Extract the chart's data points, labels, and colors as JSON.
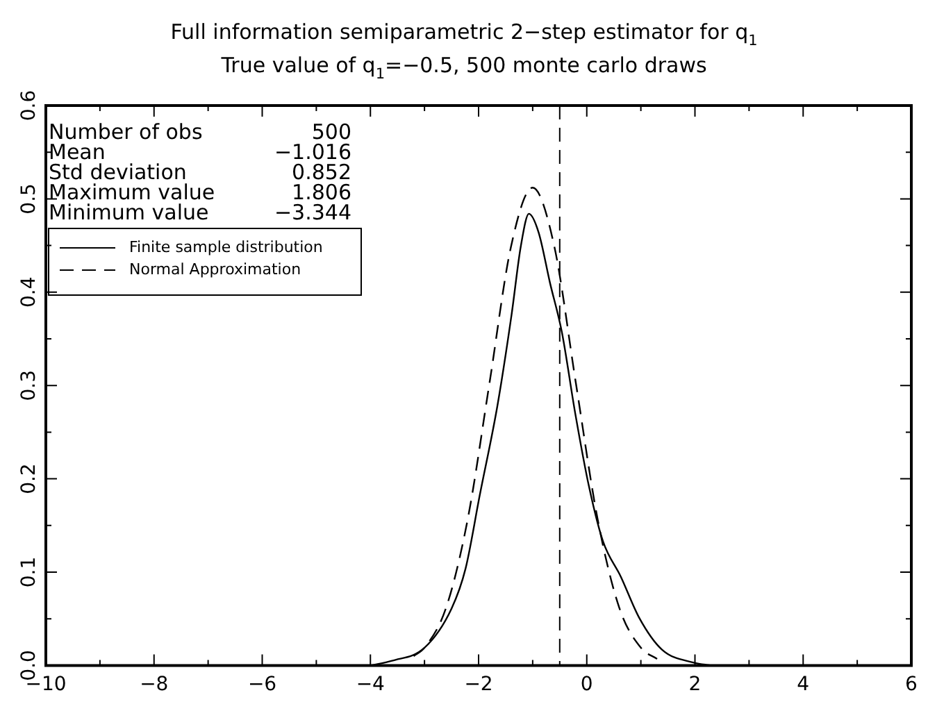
{
  "chart_data": {
    "type": "line",
    "title": "Full information semiparametric 2−step estimator for q$_{1}$",
    "subtitle": "True value of q$_{1}$=−0.5, 500 monte carlo draws",
    "xlim": [
      -10,
      6
    ],
    "xticks": [
      -10,
      -8,
      -6,
      -4,
      -2,
      0,
      2,
      4,
      6
    ],
    "ylim": [
      0,
      0.6
    ],
    "yticks": [
      {
        "value": 0,
        "label": "0.0"
      },
      0.1,
      0.2,
      0.3,
      0.4,
      0.5,
      0.6
    ],
    "grid": false,
    "legend": "top left",
    "marker": "none",
    "series": [
      {
        "name": "Finite sample distribution",
        "color": "#000000",
        "line_style": "solid",
        "x": [
          -4,
          -3.6,
          -3,
          -2.5,
          -2.24,
          -1.98,
          -1.65,
          -1.39,
          -1.22,
          -1.07,
          -0.89,
          -0.68,
          -0.46,
          -0.21,
          0.04,
          0.3,
          0.63,
          0.97,
          1.39,
          1.98,
          2.3
        ],
        "values": [
          0,
          0.005,
          0.019,
          0.061,
          0.104,
          0.182,
          0.279,
          0.376,
          0.449,
          0.484,
          0.464,
          0.41,
          0.357,
          0.269,
          0.192,
          0.133,
          0.095,
          0.051,
          0.017,
          0.003,
          0
        ]
      },
      {
        "name": "Normal Approximation",
        "color": "#000000",
        "line_style": "dashed",
        "x": [
          -3.2,
          -3,
          -2.6,
          -2.2,
          -1.8,
          -1.4,
          -1,
          -0.6,
          -0.2,
          0.2,
          0.6,
          1,
          1.3
        ],
        "values": [
          0.01,
          0.019,
          0.062,
          0.157,
          0.302,
          0.449,
          0.512,
          0.449,
          0.302,
          0.157,
          0.062,
          0.019,
          0.007
        ]
      }
    ],
    "ref_lines": [
      {
        "axis": "x",
        "value": -0.5,
        "line_style": "dashed",
        "color": "#000000"
      }
    ],
    "annotations": [
      "Number of obs",
      "500",
      "Mean",
      "−1.016",
      "Std deviation",
      "0.852",
      "Maximum value",
      "1.806",
      "Minimum value",
      "−3.344"
    ]
  }
}
